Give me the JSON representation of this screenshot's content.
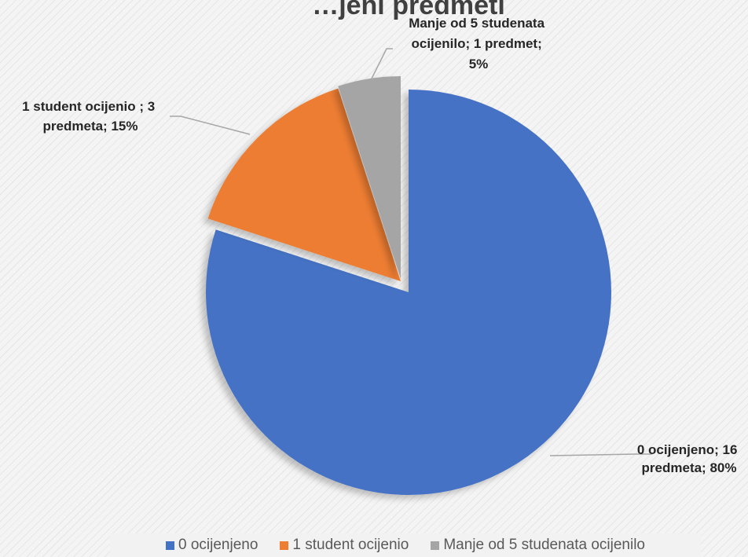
{
  "chart_data": {
    "type": "pie",
    "title": "…jeni predmeti",
    "categories": [
      "0 ocijenjeno",
      "1 student ocijenio",
      "Manje od 5 studenata ocijenilo"
    ],
    "values": [
      16,
      3,
      1
    ],
    "percents": [
      80,
      15,
      5
    ],
    "colors": [
      "#4472c4",
      "#ed7d31",
      "#a5a5a5"
    ],
    "data_labels": [
      [
        "0 ocijenjeno; 16",
        "predmeta; 80%"
      ],
      [
        "1 student ocijenio ; 3",
        "predmeta; 15%"
      ],
      [
        "Manje od 5 studenata",
        "ocijenilo; 1 predmet;",
        "5%"
      ]
    ],
    "start_angle_deg": 0,
    "exploded": true,
    "legend_position": "bottom"
  }
}
